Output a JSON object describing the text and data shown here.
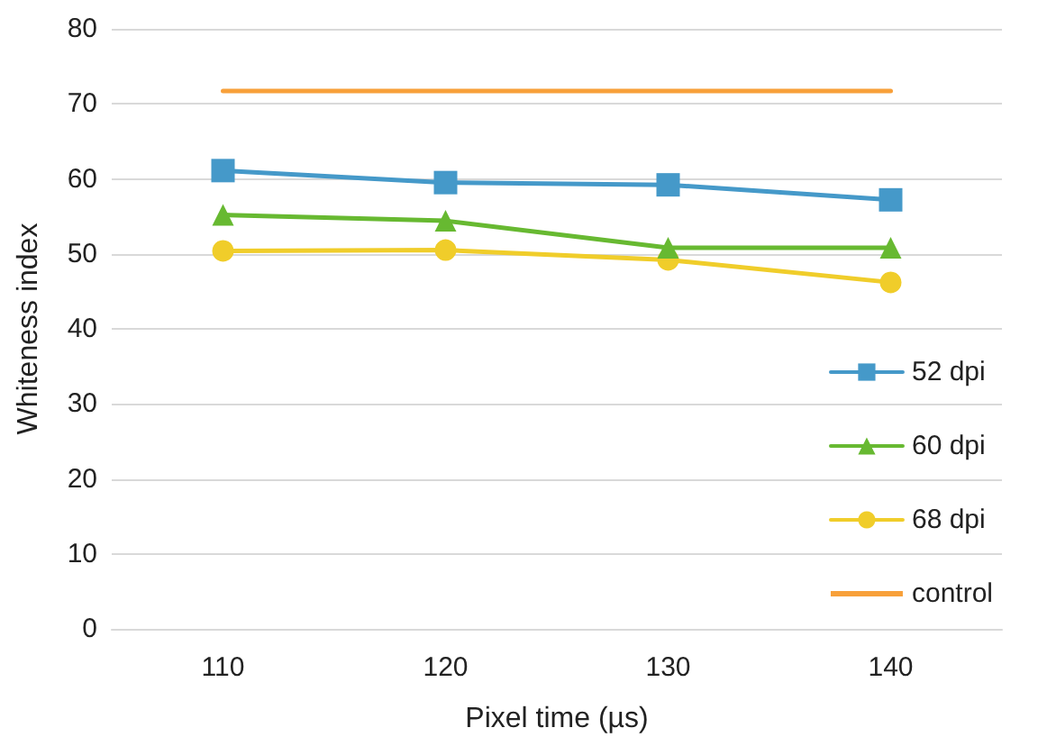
{
  "chart_data": {
    "type": "line",
    "xlabel": "Pixel time (µs)",
    "ylabel": "Whiteness index",
    "categories": [
      "110",
      "120",
      "130",
      "140"
    ],
    "series": [
      {
        "name": "52 dpi",
        "color": "#4599c9",
        "marker": "square",
        "values": [
          61.1,
          59.5,
          59.2,
          57.2
        ]
      },
      {
        "name": "60 dpi",
        "color": "#67b931",
        "marker": "triangle",
        "values": [
          55.2,
          54.4,
          50.8,
          50.8
        ]
      },
      {
        "name": "68 dpi",
        "color": "#f0cd2a",
        "marker": "circle",
        "values": [
          50.4,
          50.5,
          49.2,
          46.2
        ]
      },
      {
        "name": "control",
        "color": "#f8a03a",
        "marker": "none",
        "values": [
          71.7,
          71.7,
          71.7,
          71.7
        ]
      }
    ],
    "ylim": [
      0,
      80
    ],
    "yticks": [
      0,
      10,
      20,
      30,
      40,
      50,
      60,
      70,
      80
    ],
    "grid": "y",
    "legend": "bottom right",
    "line_style": "solid"
  }
}
